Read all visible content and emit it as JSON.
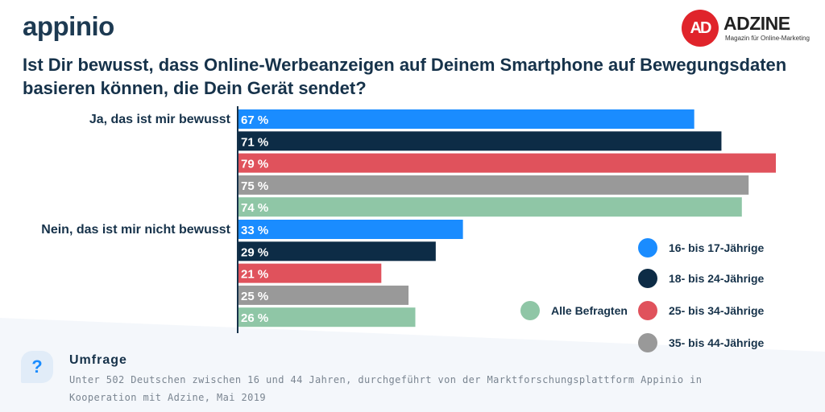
{
  "brand": "appinio",
  "partner": {
    "logo_text": "AD",
    "name": "ADZINE",
    "tagline": "Magazin für Online-Marketing"
  },
  "title_line1": "Ist Dir bewusst, dass Online-Werbeanzeigen auf Deinem Smartphone auf Bewegungsdaten",
  "title_line2": "basieren können, die Dein Gerät sendet?",
  "chart_data": {
    "type": "bar",
    "orientation": "horizontal",
    "categories": [
      "Ja, das ist mir bewusst",
      "Nein, das ist mir nicht bewusst"
    ],
    "series": [
      {
        "name": "16- bis 17-Jährige",
        "color": "#1a8cff",
        "values": [
          67,
          33
        ]
      },
      {
        "name": "18- bis 24-Jährige",
        "color": "#0d2c46",
        "values": [
          71,
          29
        ]
      },
      {
        "name": "25- bis 34-Jährige",
        "color": "#e0525c",
        "values": [
          79,
          21
        ]
      },
      {
        "name": "35- bis 44-Jährige",
        "color": "#999999",
        "values": [
          75,
          25
        ]
      },
      {
        "name": "Alle Befragten",
        "color": "#8fc6a6",
        "values": [
          74,
          26
        ]
      }
    ],
    "value_labels": [
      [
        "67 %",
        "33 %"
      ],
      [
        "71 %",
        "29 %"
      ],
      [
        "79 %",
        "21 %"
      ],
      [
        "75 %",
        "25 %"
      ],
      [
        "74 %",
        "26 %"
      ]
    ],
    "xlim": [
      0,
      79
    ],
    "legend_position": "bottom-right"
  },
  "footnote": {
    "icon": "question-icon",
    "heading": "Umfrage",
    "line1": "Unter 502 Deutschen zwischen 16 und 44 Jahren, durchgeführt von der Marktforschungsplattform Appinio in",
    "line2": "Kooperation mit Adzine, Mai 2019"
  }
}
